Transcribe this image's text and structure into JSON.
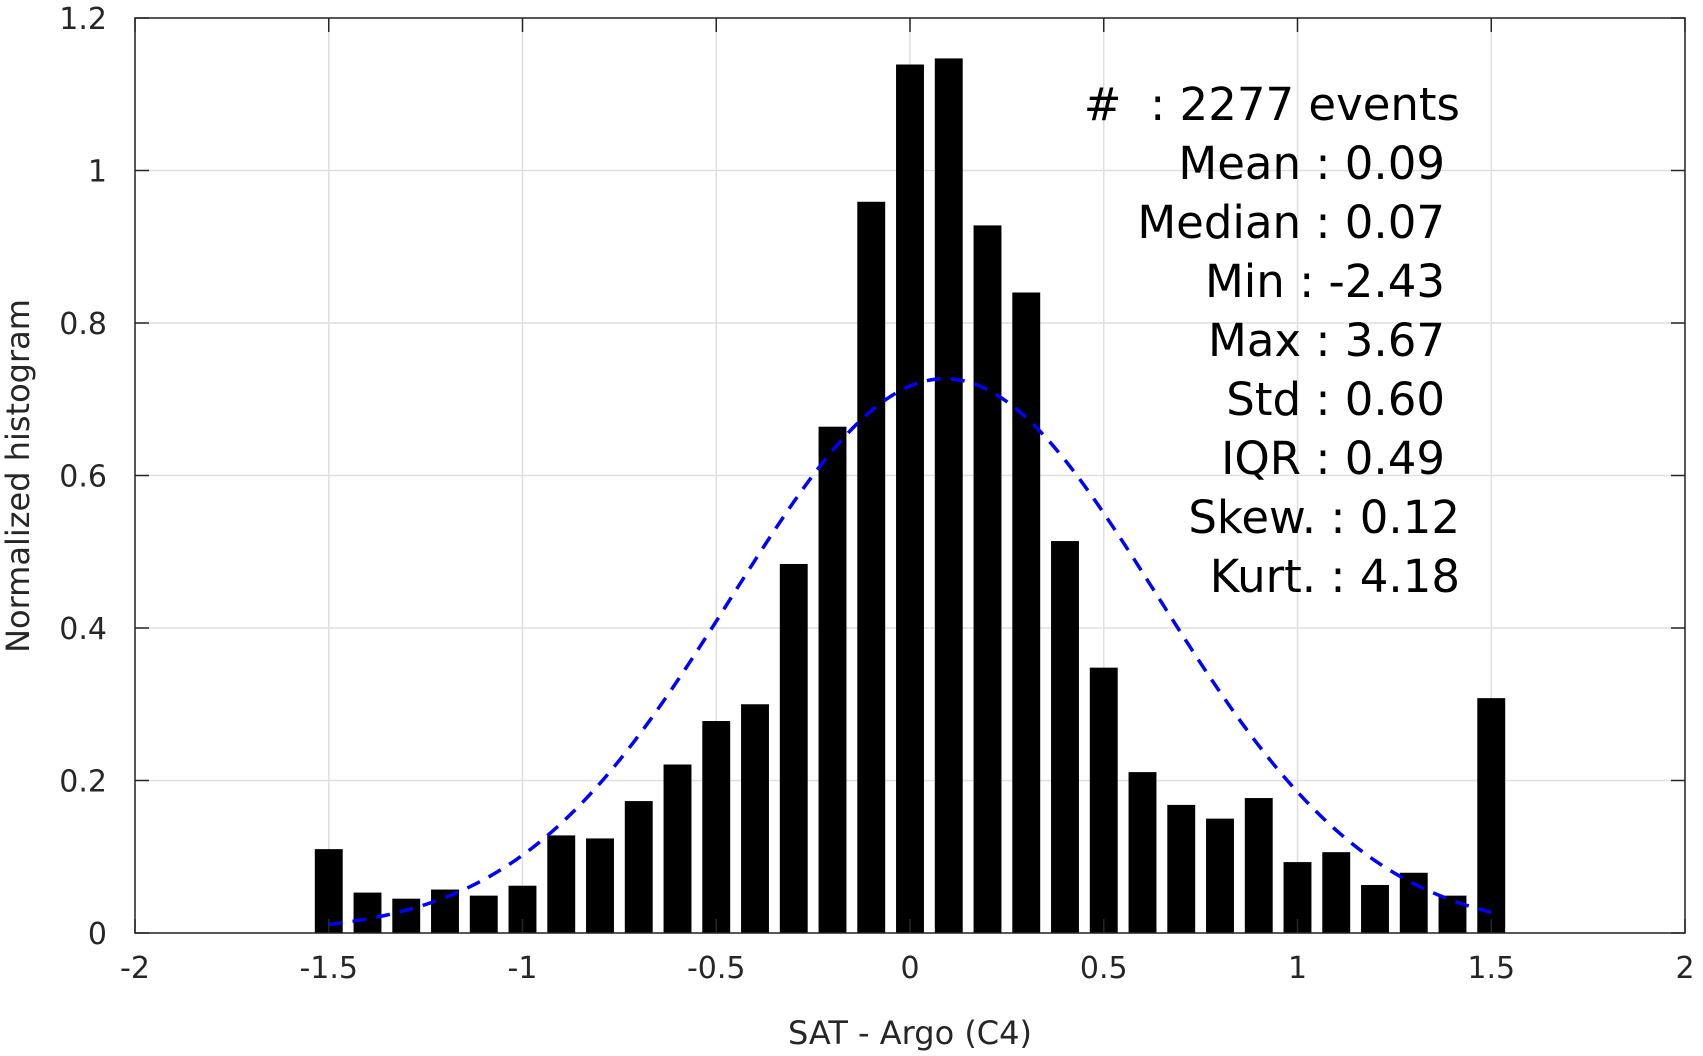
{
  "chart_data": {
    "type": "bar",
    "xlabel": "SAT - Argo (C4)",
    "ylabel": "Normalized histogram",
    "xlim": [
      -2,
      2
    ],
    "ylim": [
      0,
      1.2
    ],
    "grid": true,
    "bar_color": "#000000",
    "fit_color": "#0000ff",
    "xticks": [
      -2,
      -1.5,
      -1,
      -0.5,
      0,
      0.5,
      1,
      1.5,
      2
    ],
    "xtick_labels": [
      "-2",
      "-1.5",
      "-1",
      "-0.5",
      "0",
      "0.5",
      "1",
      "1.5",
      "2"
    ],
    "yticks": [
      0,
      0.2,
      0.4,
      0.6,
      0.8,
      1,
      1.2
    ],
    "ytick_labels": [
      "0",
      "0.2",
      "0.4",
      "0.6",
      "0.8",
      "1",
      "1.2"
    ],
    "bin_centers": [
      -1.5,
      -1.4,
      -1.3,
      -1.2,
      -1.1,
      -1.0,
      -0.9,
      -0.8,
      -0.7,
      -0.6,
      -0.5,
      -0.4,
      -0.3,
      -0.2,
      -0.1,
      0.0,
      0.1,
      0.2,
      0.3,
      0.4,
      0.5,
      0.6,
      0.7,
      0.8,
      0.9,
      1.0,
      1.1,
      1.2,
      1.3,
      1.4,
      1.5
    ],
    "values": [
      0.11,
      0.053,
      0.045,
      0.057,
      0.049,
      0.062,
      0.128,
      0.124,
      0.173,
      0.221,
      0.278,
      0.3,
      0.484,
      0.664,
      0.959,
      1.139,
      1.147,
      0.928,
      0.84,
      0.514,
      0.348,
      0.211,
      0.168,
      0.15,
      0.177,
      0.093,
      0.106,
      0.063,
      0.079,
      0.049,
      0.308
    ],
    "fit": {
      "type": "normal",
      "style": "dashed",
      "x_range": [
        -1.5,
        1.5
      ],
      "mean": 0.09,
      "std": 0.55,
      "peak": 0.727
    }
  },
  "stats": {
    "line1": "#  : 2277 events",
    "line2": "Mean : 0.09",
    "line3": "Median : 0.07",
    "line4": "Min : -2.43",
    "line5": "Max : 3.67",
    "line6": "Std : 0.60",
    "line7": "IQR : 0.49",
    "line8": "Skew. : 0.12",
    "line9": "Kurt. : 4.18"
  }
}
